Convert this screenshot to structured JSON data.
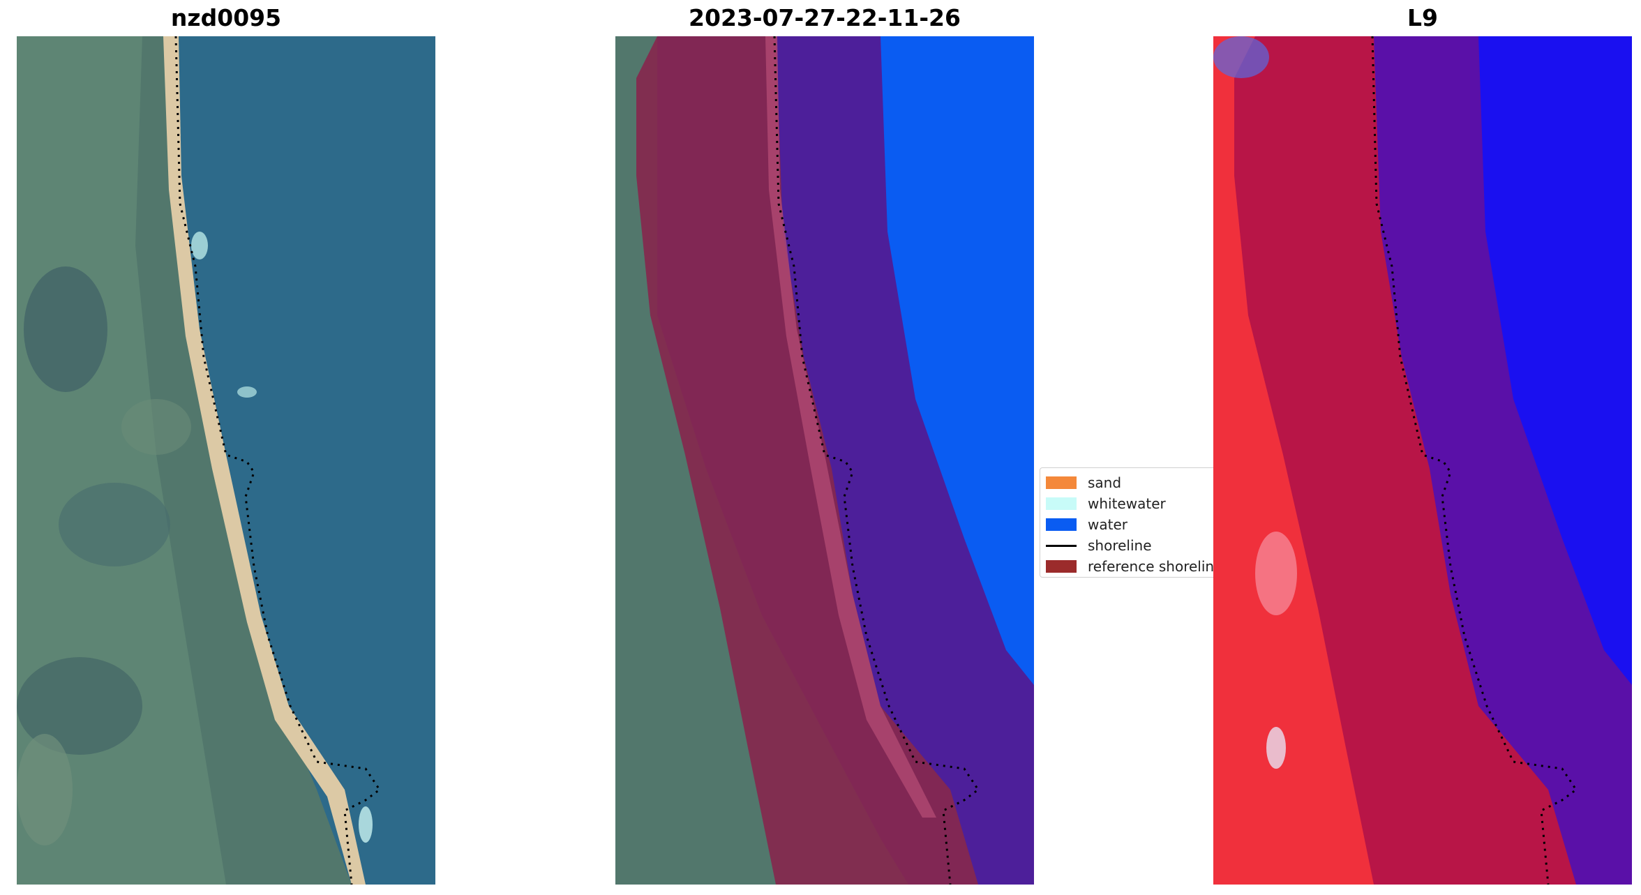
{
  "panels": [
    {
      "title": "nzd0095"
    },
    {
      "title": "2023-07-27-22-11-26"
    },
    {
      "title": "L9"
    }
  ],
  "legend": {
    "items": [
      {
        "label": "sand",
        "color": "#f4883a",
        "kind": "patch"
      },
      {
        "label": "whitewater",
        "color": "#c8fbf8",
        "kind": "patch"
      },
      {
        "label": "water",
        "color": "#0a5cf2",
        "kind": "patch"
      },
      {
        "label": "shoreline",
        "color": "#000000",
        "kind": "line"
      },
      {
        "label": "reference shoreline",
        "color": "#9b2b2b",
        "kind": "patch"
      }
    ]
  },
  "colors": {
    "ocean": "#2f6b8c",
    "land": "#5a7d72",
    "beach": "#d9c9a8",
    "buffer_overlay": "#8c1c4e",
    "sea_buffer": "#4d1f9a",
    "water_class": "#0a5cf2",
    "index_land": "#f02a3a",
    "index_buffer": "#b71445",
    "index_sea": "#5a10a8",
    "index_far_sea": "#1a10f0"
  }
}
